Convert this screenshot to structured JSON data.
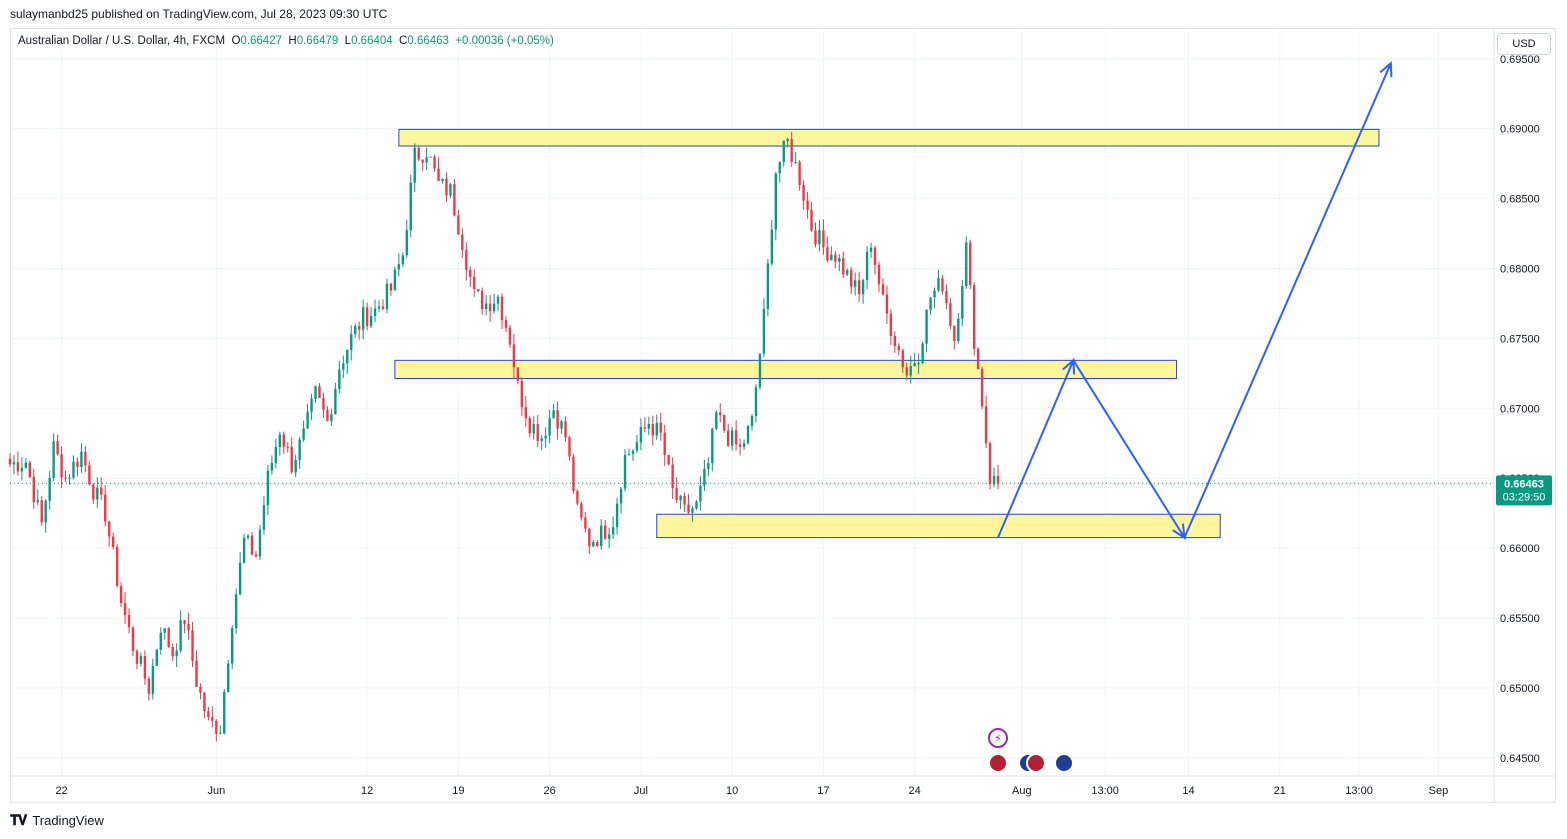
{
  "header": {
    "published": "sulaymanbd25 published on TradingView.com, Jul 28, 2023 09:30 UTC"
  },
  "legend": {
    "symbol": "Australian Dollar / U.S. Dollar, 4h, FXCM",
    "open_label": "O",
    "open": "0.66427",
    "high_label": "H",
    "high": "0.66479",
    "low_label": "L",
    "low": "0.66404",
    "close_label": "C",
    "close": "0.66463",
    "change": "+0.00036 (+0.05%)"
  },
  "currency_button": "USD",
  "price_tag": {
    "price": "0.66463",
    "countdown": "03:29:50"
  },
  "footer": {
    "brand": "TradingView",
    "logo_icon": "tradingview-logo-icon"
  },
  "colors": {
    "up": "#089981",
    "down": "#f23645",
    "zone_fill": "#fff59d",
    "zone_border": "#1e4bd2",
    "arrow": "#2962ff",
    "tag": "#089981"
  },
  "chart_data": {
    "type": "candlestick",
    "y_ticks": [
      "0.69500",
      "0.69000",
      "0.68500",
      "0.68000",
      "0.67500",
      "0.67000",
      "0.66500",
      "0.66000",
      "0.65500",
      "0.65000",
      "0.64500"
    ],
    "x_ticks": [
      {
        "label": "22",
        "i": 13
      },
      {
        "label": "Jun",
        "i": 52
      },
      {
        "label": "12",
        "i": 90
      },
      {
        "label": "19",
        "i": 113
      },
      {
        "label": "26",
        "i": 136
      },
      {
        "label": "Jul",
        "i": 159
      },
      {
        "label": "10",
        "i": 182
      },
      {
        "label": "17",
        "i": 205
      },
      {
        "label": "24",
        "i": 228
      },
      {
        "label": "Aug",
        "i": 255
      },
      {
        "label": "13:00",
        "i": 276
      },
      {
        "label": "14",
        "i": 297
      },
      {
        "label": "21",
        "i": 320
      },
      {
        "label": "13:00",
        "i": 340
      },
      {
        "label": "Sep",
        "i": 360
      }
    ],
    "ylim": [
      0.6437,
      0.6972
    ],
    "xlim": [
      0,
      374
    ],
    "last_price": 0.66463,
    "anchors": [
      [
        0,
        0.666
      ],
      [
        4,
        0.6662
      ],
      [
        8,
        0.6617
      ],
      [
        11,
        0.6672
      ],
      [
        14,
        0.665
      ],
      [
        18,
        0.6668
      ],
      [
        21,
        0.6642
      ],
      [
        24,
        0.6625
      ],
      [
        28,
        0.6562
      ],
      [
        31,
        0.653
      ],
      [
        35,
        0.65
      ],
      [
        38,
        0.6545
      ],
      [
        41,
        0.6525
      ],
      [
        44,
        0.655
      ],
      [
        47,
        0.6505
      ],
      [
        50,
        0.6475
      ],
      [
        53,
        0.6472
      ],
      [
        56,
        0.655
      ],
      [
        59,
        0.6605
      ],
      [
        62,
        0.6595
      ],
      [
        65,
        0.665
      ],
      [
        68,
        0.6685
      ],
      [
        71,
        0.666
      ],
      [
        74,
        0.668
      ],
      [
        77,
        0.671
      ],
      [
        80,
        0.669
      ],
      [
        83,
        0.673
      ],
      [
        86,
        0.675
      ],
      [
        89,
        0.6765
      ],
      [
        92,
        0.677
      ],
      [
        96,
        0.6785
      ],
      [
        99,
        0.681
      ],
      [
        102,
        0.688
      ],
      [
        105,
        0.6885
      ],
      [
        108,
        0.686
      ],
      [
        111,
        0.6855
      ],
      [
        114,
        0.682
      ],
      [
        117,
        0.678
      ],
      [
        120,
        0.6775
      ],
      [
        123,
        0.678
      ],
      [
        126,
        0.675
      ],
      [
        128,
        0.6715
      ],
      [
        131,
        0.669
      ],
      [
        134,
        0.668
      ],
      [
        137,
        0.67
      ],
      [
        140,
        0.668
      ],
      [
        143,
        0.6625
      ],
      [
        146,
        0.6605
      ],
      [
        149,
        0.661
      ],
      [
        152,
        0.662
      ],
      [
        155,
        0.6665
      ],
      [
        158,
        0.6675
      ],
      [
        161,
        0.669
      ],
      [
        164,
        0.668
      ],
      [
        167,
        0.664
      ],
      [
        170,
        0.6625
      ],
      [
        173,
        0.663
      ],
      [
        176,
        0.666
      ],
      [
        178,
        0.6695
      ],
      [
        181,
        0.668
      ],
      [
        184,
        0.667
      ],
      [
        187,
        0.669
      ],
      [
        190,
        0.6765
      ],
      [
        193,
        0.687
      ],
      [
        196,
        0.689
      ],
      [
        199,
        0.6865
      ],
      [
        202,
        0.683
      ],
      [
        205,
        0.6815
      ],
      [
        208,
        0.681
      ],
      [
        211,
        0.6795
      ],
      [
        214,
        0.678
      ],
      [
        217,
        0.682
      ],
      [
        220,
        0.6775
      ],
      [
        223,
        0.675
      ],
      [
        226,
        0.6725
      ],
      [
        229,
        0.674
      ],
      [
        232,
        0.678
      ],
      [
        235,
        0.679
      ],
      [
        238,
        0.675
      ],
      [
        241,
        0.6815
      ],
      [
        243,
        0.675
      ],
      [
        245,
        0.6705
      ],
      [
        247,
        0.665
      ],
      [
        249,
        0.6646
      ]
    ],
    "zones": [
      {
        "name": "resistance-zone-top",
        "x0": 98,
        "x1": 345,
        "y0": 0.68876,
        "y1": 0.68995
      },
      {
        "name": "middle-zone",
        "x0": 97,
        "x1": 294,
        "y0": 0.67213,
        "y1": 0.67343
      },
      {
        "name": "support-zone-bottom",
        "x0": 163,
        "x1": 305,
        "y0": 0.66075,
        "y1": 0.66242
      }
    ],
    "forecast_path": [
      [
        249,
        0.66075
      ],
      [
        268,
        0.67343
      ],
      [
        296,
        0.66075
      ],
      [
        348,
        0.69468
      ]
    ]
  }
}
